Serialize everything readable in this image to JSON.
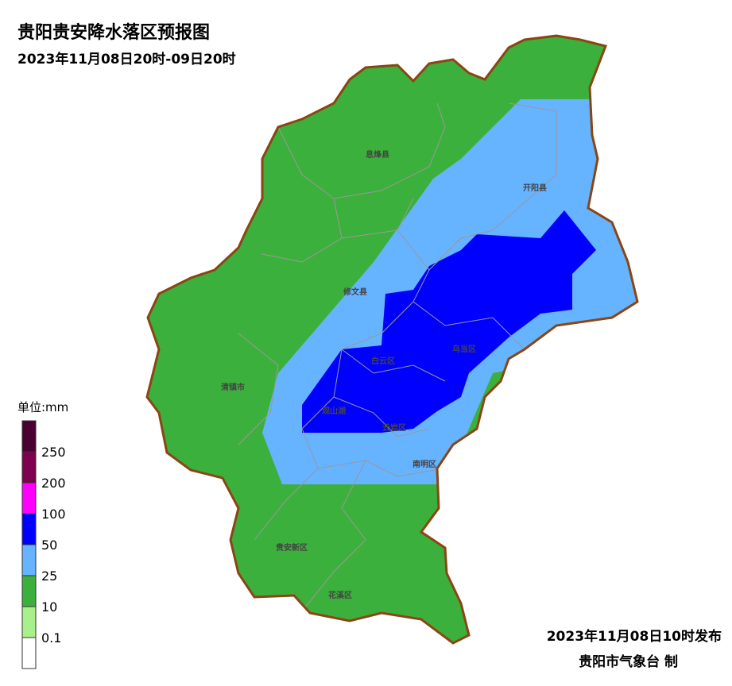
{
  "header": {
    "title": "贵阳贵安降水落区预报图",
    "subtitle": "2023年11月08日20时-09日20时"
  },
  "districts": [
    "息烽县",
    "开阳县",
    "修文县",
    "乌当区",
    "白云区",
    "清镇市",
    "观山湖",
    "云岩区",
    "南明区",
    "贵安新区",
    "花溪区"
  ],
  "legend": {
    "unit": "单位:mm",
    "labels": [
      "250",
      "200",
      "100",
      "50",
      "25",
      "10",
      "0.1"
    ],
    "colors": [
      "#4a0030",
      "#800050",
      "#ff00ff",
      "#0000ff",
      "#66b3ff",
      "#3cb03c",
      "#a8f08c",
      "#ffffff"
    ]
  },
  "footer": {
    "issued": "2023年11月08日10时发布",
    "agency": "贵阳市气象台 制"
  }
}
